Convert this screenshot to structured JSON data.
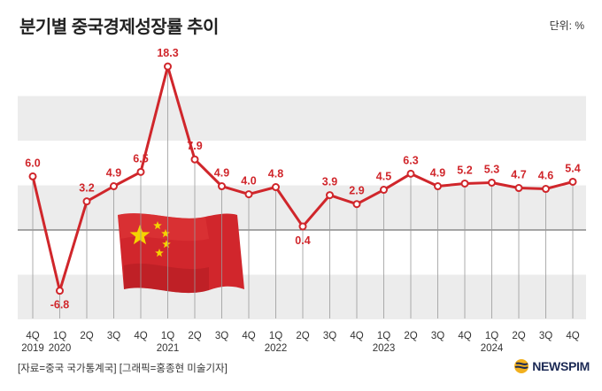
{
  "title": "분기별 중국경제성장률 추이",
  "unit_label": "단위: %",
  "source_label": "[자료=중국 국가통계국] [그래픽=홍종현 미술기자]",
  "brand": {
    "name": "NEWSPIM",
    "icon": "globe-logo-icon",
    "color": "#1c2a55"
  },
  "colors": {
    "line": "#d0262b",
    "label": "#d0262b",
    "band": "#ececec",
    "zero_line": "#555555"
  },
  "decoration": {
    "icon": "china-flag-icon"
  },
  "chart_data": {
    "type": "line",
    "title": "분기별 중국경제성장률 추이",
    "xlabel": "",
    "ylabel": "",
    "ylim": [
      -10,
      20
    ],
    "grid": "alternating horizontal bands",
    "categories": [
      "4Q",
      "1Q",
      "2Q",
      "3Q",
      "4Q",
      "1Q",
      "2Q",
      "3Q",
      "4Q",
      "1Q",
      "2Q",
      "3Q",
      "4Q",
      "1Q",
      "2Q",
      "3Q",
      "4Q",
      "1Q",
      "2Q",
      "3Q",
      "4Q"
    ],
    "years": [
      {
        "label": "2019",
        "index": 0
      },
      {
        "label": "2020",
        "index": 1
      },
      {
        "label": "2021",
        "index": 5
      },
      {
        "label": "2022",
        "index": 9
      },
      {
        "label": "2023",
        "index": 13
      },
      {
        "label": "2024",
        "index": 17
      }
    ],
    "series": [
      {
        "values": [
          6.0,
          -6.8,
          3.2,
          4.9,
          6.5,
          18.3,
          7.9,
          4.9,
          4.0,
          4.8,
          0.4,
          3.9,
          2.9,
          4.5,
          6.3,
          4.9,
          5.2,
          5.3,
          4.7,
          4.6,
          5.4
        ]
      }
    ],
    "data_labels": [
      "6.0",
      "-6.8",
      "3.2",
      "4.9",
      "6.5",
      "18.3",
      "7.9",
      "4.9",
      "4.0",
      "4.8",
      "0.4",
      "3.9",
      "2.9",
      "4.5",
      "6.3",
      "4.9",
      "5.2",
      "5.3",
      "4.7",
      "4.6",
      "5.4"
    ]
  }
}
